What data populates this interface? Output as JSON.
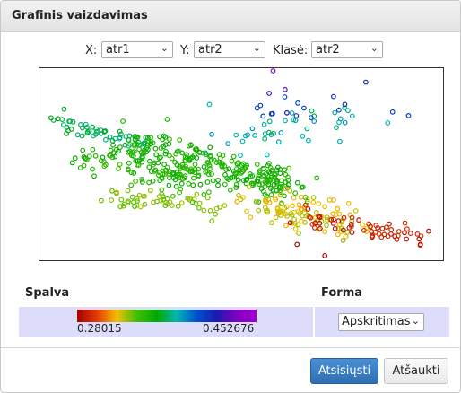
{
  "dialog": {
    "title": "Grafinis vaizdavimas"
  },
  "selectors": {
    "x_label": "X:",
    "x_value": "atr1",
    "y_label": "Y:",
    "y_value": "atr2",
    "class_label": "Klasė:",
    "class_value": "atr2"
  },
  "legend": {
    "color_label": "Spalva",
    "shape_label": "Forma",
    "min_value": "0.28015",
    "max_value": "0.452676",
    "shape_value": "Apskritimas"
  },
  "buttons": {
    "download": "Atsisiųsti",
    "cancel": "Atšaukti"
  },
  "colors": {
    "primary_button": "#2f6fb3",
    "legend_panel": "#ddddfb",
    "gradient": [
      "#a30000",
      "#f2c000",
      "#00aa00",
      "#00b7b0",
      "#1a1ab0",
      "#a000d0"
    ]
  },
  "chart_data": {
    "type": "scatter",
    "title": "",
    "xlabel": "",
    "ylabel": "",
    "marker": "circle",
    "color_scale": {
      "min": 0.28015,
      "max": 0.452676
    },
    "grid": false,
    "legend": "bottom-left",
    "seed": 7,
    "clusters": [
      {
        "x0": 0.03,
        "y0": 0.27,
        "x1": 0.28,
        "y1": 0.4,
        "n": 60,
        "spread": 0.025,
        "c0": 0.5,
        "c1": 0.6
      },
      {
        "x0": 0.1,
        "y0": 0.46,
        "x1": 0.4,
        "y1": 0.58,
        "n": 90,
        "spread": 0.035,
        "c0": 0.38,
        "c1": 0.5
      },
      {
        "x0": 0.22,
        "y0": 0.4,
        "x1": 0.62,
        "y1": 0.62,
        "n": 260,
        "spread": 0.05,
        "c0": 0.4,
        "c1": 0.5
      },
      {
        "x0": 0.17,
        "y0": 0.68,
        "x1": 0.45,
        "y1": 0.72,
        "n": 60,
        "spread": 0.03,
        "c0": 0.3,
        "c1": 0.38
      },
      {
        "x0": 0.52,
        "y0": 0.7,
        "x1": 0.78,
        "y1": 0.82,
        "n": 110,
        "spread": 0.045,
        "c0": 0.22,
        "c1": 0.32
      },
      {
        "x0": 0.62,
        "y0": 0.78,
        "x1": 0.98,
        "y1": 0.9,
        "n": 60,
        "spread": 0.025,
        "c0": 0.03,
        "c1": 0.1
      },
      {
        "x0": 0.48,
        "y0": 0.38,
        "x1": 0.8,
        "y1": 0.25,
        "n": 40,
        "spread": 0.05,
        "c0": 0.55,
        "c1": 0.68
      },
      {
        "x0": 0.56,
        "y0": 0.24,
        "x1": 0.83,
        "y1": 0.12,
        "n": 14,
        "spread": 0.035,
        "c0": 0.75,
        "c1": 0.86
      }
    ],
    "extra_points": [
      {
        "x": 0.58,
        "y": 0.0,
        "c": 0.97
      },
      {
        "x": 0.61,
        "y": 0.1,
        "c": 0.92
      },
      {
        "x": 0.57,
        "y": 0.12,
        "c": 0.88
      },
      {
        "x": 0.76,
        "y": 0.18,
        "c": 0.82
      },
      {
        "x": 0.92,
        "y": 0.24,
        "c": 0.8
      },
      {
        "x": 0.88,
        "y": 0.22,
        "c": 0.78
      },
      {
        "x": 0.05,
        "y": 0.26,
        "c": 0.55
      },
      {
        "x": 0.07,
        "y": 0.27,
        "c": 0.56
      },
      {
        "x": 0.71,
        "y": 0.99,
        "c": 0.01
      },
      {
        "x": 0.64,
        "y": 0.93,
        "c": 0.02
      },
      {
        "x": 0.95,
        "y": 0.93,
        "c": 0.03
      },
      {
        "x": 0.42,
        "y": 0.18,
        "c": 0.62
      }
    ]
  }
}
